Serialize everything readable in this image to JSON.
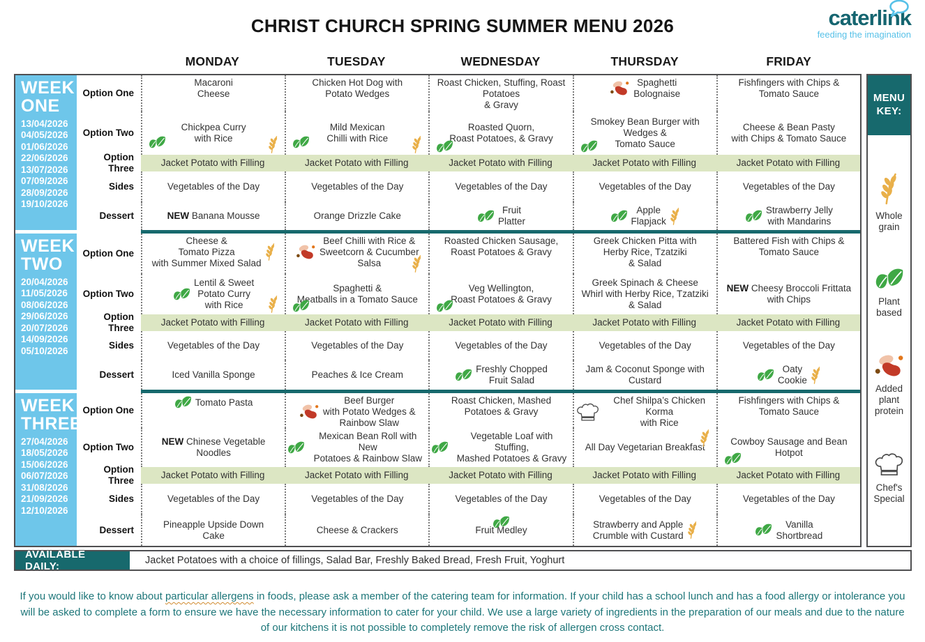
{
  "title": "CHRIST CHURCH SPRING SUMMER MENU 2026",
  "logo": {
    "name": "caterlink",
    "tagline": "feeding the imagination"
  },
  "days": [
    "MONDAY",
    "TUESDAY",
    "WEDNESDAY",
    "THURSDAY",
    "FRIDAY"
  ],
  "row_labels": {
    "option_one": "Option One",
    "option_two": "Option Two",
    "option_three": "Option Three",
    "sides": "Sides",
    "dessert": "Dessert"
  },
  "new_label": "NEW",
  "colors": {
    "teal": "#17696d",
    "week_blue": "#6ec6ea",
    "highlight_green": "#dce6c3",
    "leaf_green": "#3fa845",
    "wheat_gold": "#e9b04a",
    "bean_red": "#c23a28",
    "logo_teal": "#156570",
    "logo_light_blue": "#57c1e8",
    "footer_teal": "#1d7679"
  },
  "weeks": [
    {
      "label": "WEEK ONE",
      "dates": [
        "13/04/2026",
        "04/05/2026",
        "01/06/2026",
        "22/06/2026",
        "13/07/2026",
        "07/09/2026",
        "28/09/2026",
        "19/10/2026"
      ],
      "rows": {
        "option_one": [
          {
            "text": "Macaroni\nCheese"
          },
          {
            "text": "Chicken Hot Dog with\nPotato Wedges"
          },
          {
            "text": "Roast Chicken, Stuffing, Roast\nPotatoes\n& Gravy"
          },
          {
            "text": "Spaghetti\nBolognaise",
            "icons": [
              {
                "type": "added-plant-protein",
                "pos": "l"
              }
            ]
          },
          {
            "text": "Fishfingers with Chips &\nTomato Sauce"
          }
        ],
        "option_two": [
          {
            "text": "Chickpea Curry\nwith Rice",
            "icons": [
              {
                "type": "plant-based",
                "pos": "bl"
              },
              {
                "type": "whole-grain",
                "pos": "br"
              }
            ]
          },
          {
            "text": "Mild Mexican\nChilli with Rice",
            "icons": [
              {
                "type": "plant-based",
                "pos": "bl"
              },
              {
                "type": "whole-grain",
                "pos": "br"
              }
            ]
          },
          {
            "text": "Roasted Quorn,\nRoast Potatoes, & Gravy",
            "icons": [
              {
                "type": "plant-based",
                "pos": "bl"
              }
            ]
          },
          {
            "text": "Smokey Bean Burger with\nWedges &\nTomato Sauce",
            "icons": [
              {
                "type": "plant-based",
                "pos": "bl"
              }
            ]
          },
          {
            "text": "Cheese & Bean Pasty\nwith Chips & Tomato Sauce"
          }
        ],
        "option_three": [
          {
            "text": "Jacket Potato with Filling"
          },
          {
            "text": "Jacket Potato with Filling"
          },
          {
            "text": "Jacket Potato with Filling"
          },
          {
            "text": "Jacket Potato with Filling"
          },
          {
            "text": "Jacket Potato with Filling"
          }
        ],
        "sides": [
          {
            "text": "Vegetables of the Day"
          },
          {
            "text": "Vegetables of the Day"
          },
          {
            "text": "Vegetables of the Day"
          },
          {
            "text": "Vegetables of the Day"
          },
          {
            "text": "Vegetables of the Day"
          }
        ],
        "dessert": [
          {
            "text": "Banana Mousse",
            "new": true
          },
          {
            "text": "Orange Drizzle Cake"
          },
          {
            "text": "Fruit\nPlatter",
            "icons": [
              {
                "type": "plant-based",
                "pos": "l"
              }
            ]
          },
          {
            "text": "Apple\nFlapjack",
            "icons": [
              {
                "type": "plant-based",
                "pos": "l"
              },
              {
                "type": "whole-grain",
                "pos": "r"
              }
            ]
          },
          {
            "text": "Strawberry Jelly\nwith Mandarins",
            "icons": [
              {
                "type": "plant-based",
                "pos": "l"
              }
            ]
          }
        ]
      }
    },
    {
      "label": "WEEK TWO",
      "dates": [
        "20/04/2026",
        "11/05/2026",
        "08/06/2026",
        "29/06/2026",
        "20/07/2026",
        "14/09/2026",
        "05/10/2026"
      ],
      "rows": {
        "option_one": [
          {
            "text": "Cheese &\nTomato Pizza\nwith Summer Mixed Salad",
            "icons": [
              {
                "type": "whole-grain",
                "pos": "r"
              }
            ]
          },
          {
            "text": "Beef Chilli with Rice &\nSweetcorn & Cucumber\nSalsa",
            "icons": [
              {
                "type": "added-plant-protein",
                "pos": "l"
              },
              {
                "type": "whole-grain",
                "pos": "br"
              }
            ]
          },
          {
            "text": "Roasted Chicken Sausage,\nRoast Potatoes & Gravy"
          },
          {
            "text": "Greek Chicken Pitta with\nHerby Rice, Tzatziki\n& Salad"
          },
          {
            "text": "Battered Fish with Chips &\nTomato Sauce"
          }
        ],
        "option_two": [
          {
            "text": "Lentil & Sweet\nPotato Curry\nwith Rice",
            "icons": [
              {
                "type": "plant-based",
                "pos": "l"
              },
              {
                "type": "whole-grain",
                "pos": "br"
              }
            ]
          },
          {
            "text": "Spaghetti &\nMeatballs in a Tomato Sauce",
            "icons": [
              {
                "type": "plant-based",
                "pos": "bl"
              }
            ]
          },
          {
            "text": "Veg Wellington,\nRoast Potatoes & Gravy",
            "icons": [
              {
                "type": "plant-based",
                "pos": "bl"
              }
            ]
          },
          {
            "text": "Greek Spinach & Cheese\nWhirl with Herby Rice, Tzatziki\n& Salad"
          },
          {
            "text": "Cheesy Broccoli Frittata\nwith Chips",
            "new": true
          }
        ],
        "option_three": [
          {
            "text": "Jacket Potato with Filling"
          },
          {
            "text": "Jacket Potato with Filling"
          },
          {
            "text": "Jacket Potato with Filling"
          },
          {
            "text": "Jacket Potato with Filling"
          },
          {
            "text": "Jacket Potato with Filling"
          }
        ],
        "sides": [
          {
            "text": "Vegetables of the Day"
          },
          {
            "text": "Vegetables of the Day"
          },
          {
            "text": "Vegetables of the Day"
          },
          {
            "text": "Vegetables of the Day"
          },
          {
            "text": "Vegetables of the Day"
          }
        ],
        "dessert": [
          {
            "text": "Iced Vanilla Sponge"
          },
          {
            "text": "Peaches & Ice Cream"
          },
          {
            "text": "Freshly Chopped\nFruit Salad",
            "icons": [
              {
                "type": "plant-based",
                "pos": "l"
              }
            ]
          },
          {
            "text": "Jam & Coconut Sponge with\nCustard"
          },
          {
            "text": "Oaty\nCookie",
            "icons": [
              {
                "type": "plant-based",
                "pos": "l"
              },
              {
                "type": "whole-grain",
                "pos": "r"
              }
            ]
          }
        ]
      }
    },
    {
      "label": "WEEK THREE",
      "dates": [
        "27/04/2026",
        "18/05/2026",
        "15/06/2026",
        "06/07/2026",
        "31/08/2026",
        "21/09/2026",
        "12/10/2026"
      ],
      "rows": {
        "option_one": [
          {
            "text": "Tomato Pasta",
            "icons": [
              {
                "type": "plant-based",
                "pos": "l"
              }
            ]
          },
          {
            "text": "Beef Burger\nwith Potato Wedges &\nRainbow Slaw",
            "icons": [
              {
                "type": "added-plant-protein",
                "pos": "l"
              }
            ]
          },
          {
            "text": "Roast Chicken, Mashed\nPotatoes & Gravy"
          },
          {
            "text": "Chef Shilpa’s Chicken Korma\nwith Rice",
            "icons": [
              {
                "type": "chefs-special",
                "pos": "l"
              }
            ]
          },
          {
            "text": "Fishfingers with Chips &\nTomato Sauce"
          }
        ],
        "option_two": [
          {
            "text": "Chinese Vegetable\nNoodles",
            "new": true
          },
          {
            "text": "Mexican Bean Roll with New\nPotatoes & Rainbow Slaw",
            "icons": [
              {
                "type": "plant-based",
                "pos": "l"
              }
            ]
          },
          {
            "text": "Vegetable Loaf with Stuffing,\nMashed Potatoes & Gravy",
            "icons": [
              {
                "type": "plant-based",
                "pos": "l"
              }
            ]
          },
          {
            "text": "All Day Vegetarian Breakfast",
            "icons": [
              {
                "type": "whole-grain",
                "pos": "tr"
              }
            ]
          },
          {
            "text": "Cowboy Sausage and Bean\nHotpot",
            "icons": [
              {
                "type": "plant-based",
                "pos": "bl"
              }
            ]
          }
        ],
        "option_three": [
          {
            "text": "Jacket Potato with Filling"
          },
          {
            "text": "Jacket Potato with Filling"
          },
          {
            "text": "Jacket Potato with Filling"
          },
          {
            "text": "Jacket Potato with Filling"
          },
          {
            "text": "Jacket Potato with Filling"
          }
        ],
        "sides": [
          {
            "text": "Vegetables of the Day"
          },
          {
            "text": "Vegetables of the Day"
          },
          {
            "text": "Vegetables of the Day"
          },
          {
            "text": "Vegetables of the Day"
          },
          {
            "text": "Vegetables of the Day"
          }
        ],
        "dessert": [
          {
            "text": "Pineapple Upside Down\nCake"
          },
          {
            "text": "Cheese & Crackers"
          },
          {
            "text": "Fruit Medley",
            "icons": [
              {
                "type": "plant-based",
                "pos": "t"
              }
            ]
          },
          {
            "text": "Strawberry and Apple\nCrumble with Custard",
            "icons": [
              {
                "type": "whole-grain",
                "pos": "r"
              }
            ]
          },
          {
            "text": "Vanilla\nShortbread",
            "icons": [
              {
                "type": "plant-based",
                "pos": "l"
              }
            ]
          }
        ]
      }
    }
  ],
  "menu_key": {
    "title": "MENU KEY:",
    "items": [
      {
        "icon": "whole-grain",
        "label": "Whole grain"
      },
      {
        "icon": "plant-based",
        "label": "Plant based"
      },
      {
        "icon": "added-plant-protein",
        "label": "Added plant protein"
      },
      {
        "icon": "chefs-special",
        "label": "Chef's Special"
      }
    ]
  },
  "available_daily": {
    "label": "AVAILABLE DAILY:",
    "text": "Jacket Potatoes with a choice of fillings, Salad Bar, Freshly Baked Bread, Fresh Fruit, Yoghurt"
  },
  "footer": {
    "pre": "If you would like to know about ",
    "underlined": "particular allergens",
    "post": " in foods, please ask a member of the catering team for information. If your child has a school lunch and has a food allergy or intolerance you will be asked to complete a form to ensure we have the necessary information to cater for your child. We use a large variety of ingredients in the preparation of our meals and due to the nature of our kitchens it is not possible to completely remove the risk of allergen cross contact."
  }
}
